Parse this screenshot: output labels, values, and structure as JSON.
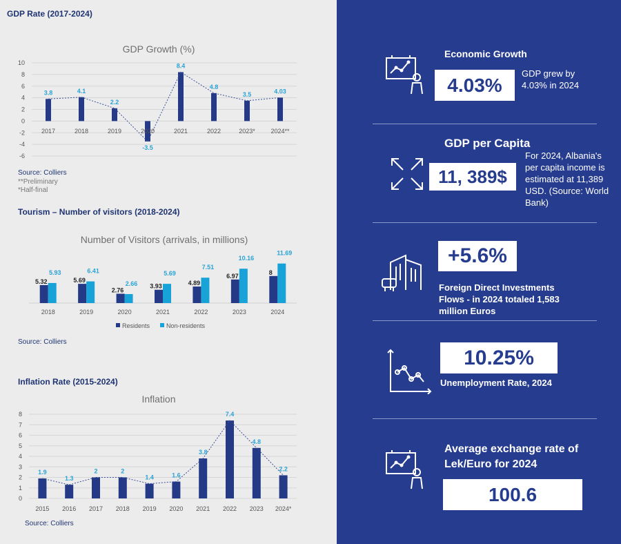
{
  "gdp": {
    "section_title": "GDP Rate (2017-2024)",
    "source": "Source: Colliers",
    "notes": [
      "**Preliminary",
      "*Half-final"
    ]
  },
  "tourism": {
    "section_title": "Tourism – Number of visitors (2018-2024)",
    "source": "Source: Colliers"
  },
  "inflation": {
    "section_title": "Inflation Rate (2015-2024)",
    "source": "Source: Colliers"
  },
  "chart_data": [
    {
      "type": "bar",
      "title": "GDP Growth (%)",
      "categories": [
        "2017",
        "2018",
        "2019",
        "2020",
        "2021",
        "2022",
        "2023*",
        "2024**"
      ],
      "values": [
        3.8,
        4.1,
        2.2,
        -3.5,
        8.4,
        4.8,
        3.5,
        4.03
      ],
      "data_labels": [
        "3.8",
        "4.1",
        "2.2",
        "-3.5",
        "8.4",
        "4.8",
        "3.5",
        "4.03"
      ],
      "ylim": [
        -6,
        10
      ],
      "yticks": [
        "10",
        "8",
        "6",
        "4",
        "2",
        "0",
        "-2",
        "-4",
        "-6"
      ],
      "trendline": "dotted",
      "bar_color": "#243a86",
      "label_color": "#29a3d6"
    },
    {
      "type": "bar",
      "title": "Number of Visitors (arrivals, in millions)",
      "categories": [
        "2018",
        "2019",
        "2020",
        "2021",
        "2022",
        "2023",
        "2024"
      ],
      "series": [
        {
          "name": "Residents",
          "values": [
            5.32,
            5.69,
            2.76,
            3.93,
            4.89,
            6.97,
            8
          ],
          "labels": [
            "5.32",
            "5.69",
            "2.76",
            "3.93",
            "4.89",
            "6.97",
            "8"
          ],
          "color": "#243a86"
        },
        {
          "name": "Non-residents",
          "values": [
            5.93,
            6.41,
            2.66,
            5.69,
            7.51,
            10.16,
            11.69
          ],
          "labels": [
            "5.93",
            "6.41",
            "2.66",
            "5.69",
            "7.51",
            "10.16",
            "11.69"
          ],
          "color": "#17a3d8"
        }
      ],
      "legend": "bottom"
    },
    {
      "type": "bar",
      "title": "Inflation",
      "categories": [
        "2015",
        "2016",
        "2017",
        "2018",
        "2019",
        "2020",
        "2021",
        "2022",
        "2023",
        "2024*"
      ],
      "values": [
        1.9,
        1.3,
        2,
        2,
        1.4,
        1.6,
        3.8,
        7.4,
        4.8,
        2.2
      ],
      "data_labels": [
        "1.9",
        "1.3",
        "2",
        "2",
        "1.4",
        "1.6",
        "3.8",
        "7.4",
        "4.8",
        "2.2"
      ],
      "ylim": [
        0,
        8
      ],
      "yticks": [
        "8",
        "7",
        "6",
        "5",
        "4",
        "3",
        "2",
        "1",
        "0"
      ],
      "trendline": "dotted",
      "bar_color": "#243a86",
      "label_color": "#29a3d6"
    }
  ],
  "kpis": {
    "economic_growth": {
      "title": "Economic Growth",
      "value": "4.03%",
      "desc_line1": "GDP grew by",
      "desc_line2": "4.03% in 2024",
      "icon": "presentation-chart-icon"
    },
    "gdp_per_capita": {
      "title": "GDP per Capita",
      "value": "11, 389$",
      "desc_lines": [
        "For 2024, Albania's",
        "per capita income is",
        "estimated at 11,389",
        "USD. (Source: World",
        "Bank)"
      ],
      "icon": "expand-arrows-icon"
    },
    "fdi": {
      "value": "+5.6%",
      "desc_lines": [
        "Foreign Direct Investments",
        "Flows - in 2024 totaled 1,583",
        "million Euros"
      ],
      "icon": "buildings-icon"
    },
    "unemployment": {
      "value": "10.25%",
      "desc": "Unemployment Rate, 2024",
      "icon": "line-graph-icon"
    },
    "exchange_rate": {
      "title_line1": "Average exchange rate of",
      "title_line2": "Lek/Euro for 2024",
      "value": "100.6",
      "icon": "presentation-chart-icon"
    }
  },
  "colors": {
    "panel": "#263c8e",
    "accent": "#29a3d6",
    "bar": "#243a86"
  }
}
